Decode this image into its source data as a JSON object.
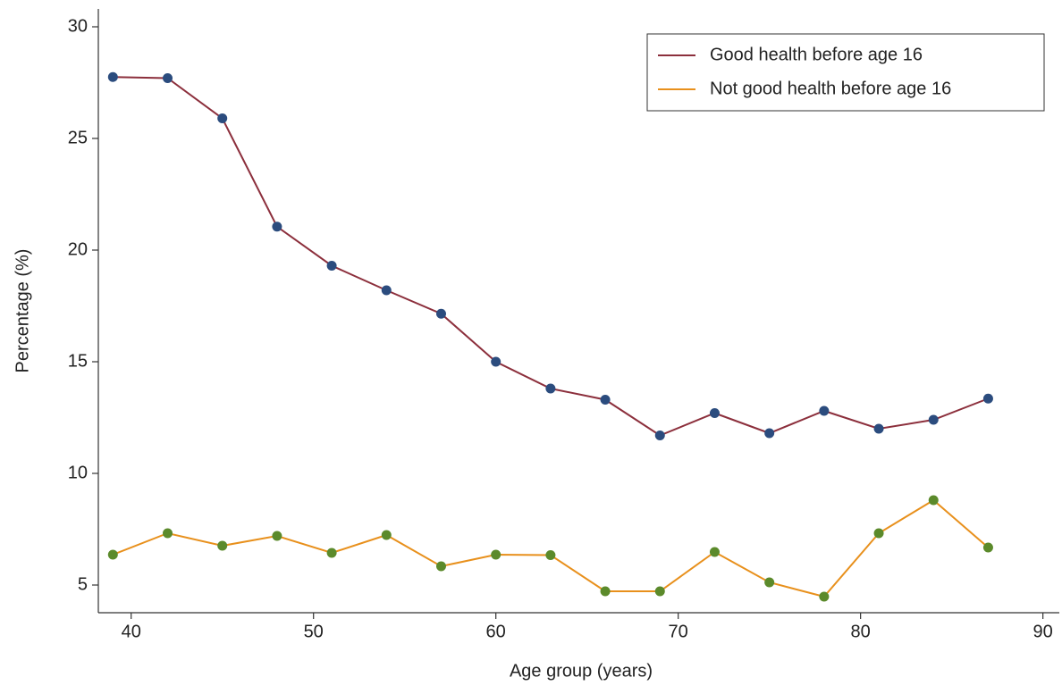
{
  "chart_data": {
    "type": "line",
    "x_label": "Age group (years)",
    "y_label": "Percentage (%)",
    "x": [
      39,
      42,
      45,
      48,
      51,
      54,
      57,
      60,
      63,
      66,
      69,
      72,
      75,
      78,
      81,
      84,
      87
    ],
    "series": [
      {
        "name": "Good health before age 16",
        "color": "#8c2f3c",
        "marker_color": "#2b4c7e",
        "values": [
          27.75,
          27.7,
          25.9,
          21.05,
          19.3,
          18.2,
          17.15,
          15.0,
          13.8,
          13.3,
          11.7,
          12.7,
          11.8,
          12.8,
          12.0,
          12.4,
          13.35
        ]
      },
      {
        "name": "Not good health before age 16",
        "color": "#e8901c",
        "marker_color": "#5b8a2b",
        "values": [
          6.36,
          7.32,
          6.76,
          7.2,
          6.44,
          7.24,
          5.84,
          6.36,
          6.34,
          4.72,
          4.72,
          6.48,
          5.12,
          4.48,
          7.32,
          8.8,
          6.68
        ]
      }
    ],
    "xlim": [
      38.2,
      90.9
    ],
    "xticks": [
      40,
      50,
      60,
      70,
      80,
      90
    ],
    "ylim": [
      3.76,
      30.8
    ],
    "yticks": [
      5,
      10,
      15,
      20,
      25,
      30
    ],
    "legend": "top-right"
  }
}
